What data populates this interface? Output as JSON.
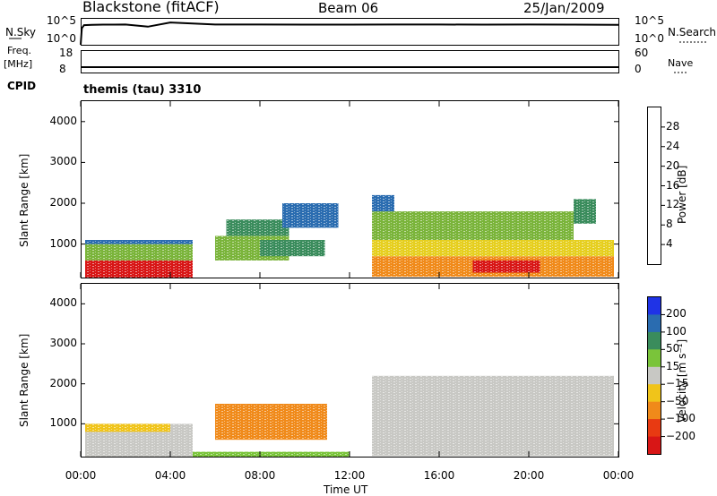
{
  "header": {
    "station": "Blackstone (fitACF)",
    "beam": "Beam 06",
    "date": "25/Jan/2009"
  },
  "labels": {
    "nsky": "N.Sky",
    "nsearch": "N.Search",
    "freq": "Freq.",
    "mhz": "[MHz]",
    "nave": "Nave",
    "cpid": "CPID",
    "cpid_value": "themis (tau) 3310",
    "time_axis": "Time UT",
    "slant_range": "Slant Range [km]",
    "power": "Power [dB]",
    "velocity": "Velocity [m s⁻¹]",
    "noise_left_ticks": [
      "10^5",
      "10^0"
    ],
    "noise_right_ticks": [
      "10^5",
      "10^0"
    ],
    "freq_left_ticks": [
      "18",
      "8"
    ],
    "nave_right_ticks": [
      "60",
      "0"
    ]
  },
  "chart_data": [
    {
      "type": "line",
      "title": "N.Sky / N.Search",
      "ylabel": "N.Sky",
      "y_scale": "log",
      "ylim": [
        1,
        100000
      ],
      "x": [
        0.0,
        0.05,
        0.15,
        0.5,
        1.0,
        2.0,
        3.0,
        4.0,
        5.0,
        6.0,
        8.0,
        10.0,
        12.0,
        14.0,
        16.0,
        18.0,
        20.0,
        22.0,
        24.0
      ],
      "series": [
        {
          "name": "N.Sky",
          "values": [
            1,
            1500,
            6000,
            7000,
            7500,
            8000,
            3000,
            20000,
            12000,
            8000,
            8000,
            7500,
            7500,
            8000,
            8000,
            7500,
            8000,
            7500,
            7000
          ]
        }
      ],
      "color": "#000000"
    },
    {
      "type": "line",
      "title": "Freq. / Nave",
      "ylabel": "Freq. [MHz]",
      "ylim": [
        8,
        18
      ],
      "x": [
        0,
        2,
        4,
        8,
        12,
        16,
        20,
        24
      ],
      "series": [
        {
          "name": "Freq.",
          "values": [
            10.5,
            10.5,
            10.5,
            10.5,
            10.5,
            10.5,
            10.5,
            10.5
          ]
        }
      ],
      "color": "#000000"
    },
    {
      "type": "heatmap",
      "title": "Power [dB]",
      "xlabel": "Time UT",
      "ylabel": "Slant Range [km]",
      "xlim": [
        "00:00",
        "24:00"
      ],
      "ylim": [
        180,
        4500
      ],
      "x_ticks": [
        "00:00",
        "04:00",
        "08:00",
        "12:00",
        "16:00",
        "20:00",
        "00:00"
      ],
      "y_ticks": [
        "1000",
        "2000",
        "3000",
        "4000"
      ],
      "colorbar": {
        "ticks": [
          "4",
          "8",
          "12",
          "16",
          "20",
          "24",
          "28"
        ],
        "range": [
          0,
          32
        ],
        "colors": [
          "#1f33e6",
          "#2a6cb0",
          "#3a8c5c",
          "#7ab43a",
          "#e6cf1f",
          "#f08a1a",
          "#e83a12",
          "#d81616"
        ]
      },
      "regions": [
        {
          "t0": 0.2,
          "t1": 5.0,
          "r0": 180,
          "r1": 600,
          "value": 28
        },
        {
          "t0": 0.2,
          "t1": 5.0,
          "r0": 600,
          "r1": 1000,
          "value": 14
        },
        {
          "t0": 0.2,
          "t1": 5.0,
          "r0": 1000,
          "r1": 1100,
          "value": 6
        },
        {
          "t0": 6.0,
          "t1": 9.3,
          "r0": 600,
          "r1": 1200,
          "value": 12
        },
        {
          "t0": 6.5,
          "t1": 9.3,
          "r0": 1200,
          "r1": 1600,
          "value": 8
        },
        {
          "t0": 8.0,
          "t1": 10.9,
          "r0": 700,
          "r1": 1100,
          "value": 10
        },
        {
          "t0": 9.0,
          "t1": 11.5,
          "r0": 1400,
          "r1": 2000,
          "value": 6
        },
        {
          "t0": 13.0,
          "t1": 23.8,
          "r0": 200,
          "r1": 700,
          "value": 22
        },
        {
          "t0": 13.0,
          "t1": 23.8,
          "r0": 700,
          "r1": 1100,
          "value": 18
        },
        {
          "t0": 13.0,
          "t1": 22.0,
          "r0": 1100,
          "r1": 1800,
          "value": 12
        },
        {
          "t0": 13.0,
          "t1": 14.0,
          "r0": 1800,
          "r1": 2200,
          "value": 6
        },
        {
          "t0": 17.5,
          "t1": 20.5,
          "r0": 300,
          "r1": 600,
          "value": 28
        },
        {
          "t0": 22.0,
          "t1": 23.0,
          "r0": 1500,
          "r1": 2100,
          "value": 8
        }
      ]
    },
    {
      "type": "heatmap",
      "title": "Velocity [m s-1]",
      "xlabel": "Time UT",
      "ylabel": "Slant Range [km]",
      "xlim": [
        "00:00",
        "24:00"
      ],
      "ylim": [
        180,
        4500
      ],
      "x_ticks": [
        "00:00",
        "04:00",
        "08:00",
        "12:00",
        "16:00",
        "20:00",
        "00:00"
      ],
      "y_ticks": [
        "1000",
        "2000",
        "3000",
        "4000"
      ],
      "colorbar": {
        "ticks": [
          "200",
          "100",
          "50",
          "15",
          "−15",
          "−50",
          "−100",
          "−200"
        ],
        "colors": [
          "#1f33e6",
          "#2a6cb0",
          "#3a8c5c",
          "#7ac43a",
          "#c8c8c4",
          "#f0c41a",
          "#f08a1a",
          "#e83a12",
          "#d81616"
        ]
      },
      "regions": [
        {
          "t0": 0.2,
          "t1": 5.0,
          "r0": 180,
          "r1": 1000,
          "value": 0
        },
        {
          "t0": 0.2,
          "t1": 4.0,
          "r0": 800,
          "r1": 1000,
          "value": -30
        },
        {
          "t0": 6.0,
          "t1": 11.0,
          "r0": 600,
          "r1": 1500,
          "value": -60
        },
        {
          "t0": 5.0,
          "t1": 12.0,
          "r0": 180,
          "r1": 300,
          "value": 20
        },
        {
          "t0": 13.0,
          "t1": 23.8,
          "r0": 200,
          "r1": 2200,
          "value": 0
        }
      ]
    }
  ]
}
